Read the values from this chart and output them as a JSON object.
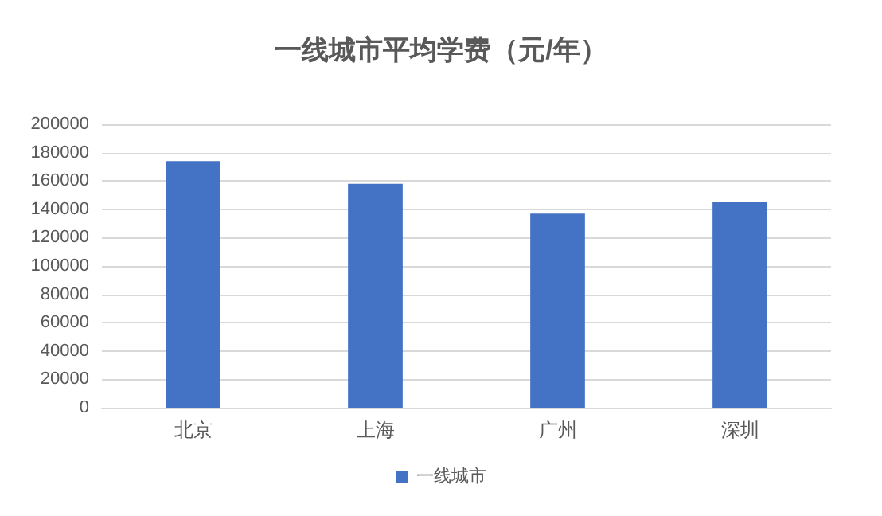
{
  "chart_data": {
    "type": "bar",
    "title": "一线城市平均学费（元/年）",
    "categories": [
      "北京",
      "上海",
      "广州",
      "深圳"
    ],
    "series": [
      {
        "name": "一线城市",
        "color": "#4472c4",
        "values": [
          174000,
          158000,
          137000,
          145000
        ]
      }
    ],
    "ylim": [
      0,
      200000
    ],
    "yticks": [
      0,
      20000,
      40000,
      60000,
      80000,
      100000,
      120000,
      140000,
      160000,
      180000,
      200000
    ],
    "grid": "y",
    "legend": "bottom"
  }
}
